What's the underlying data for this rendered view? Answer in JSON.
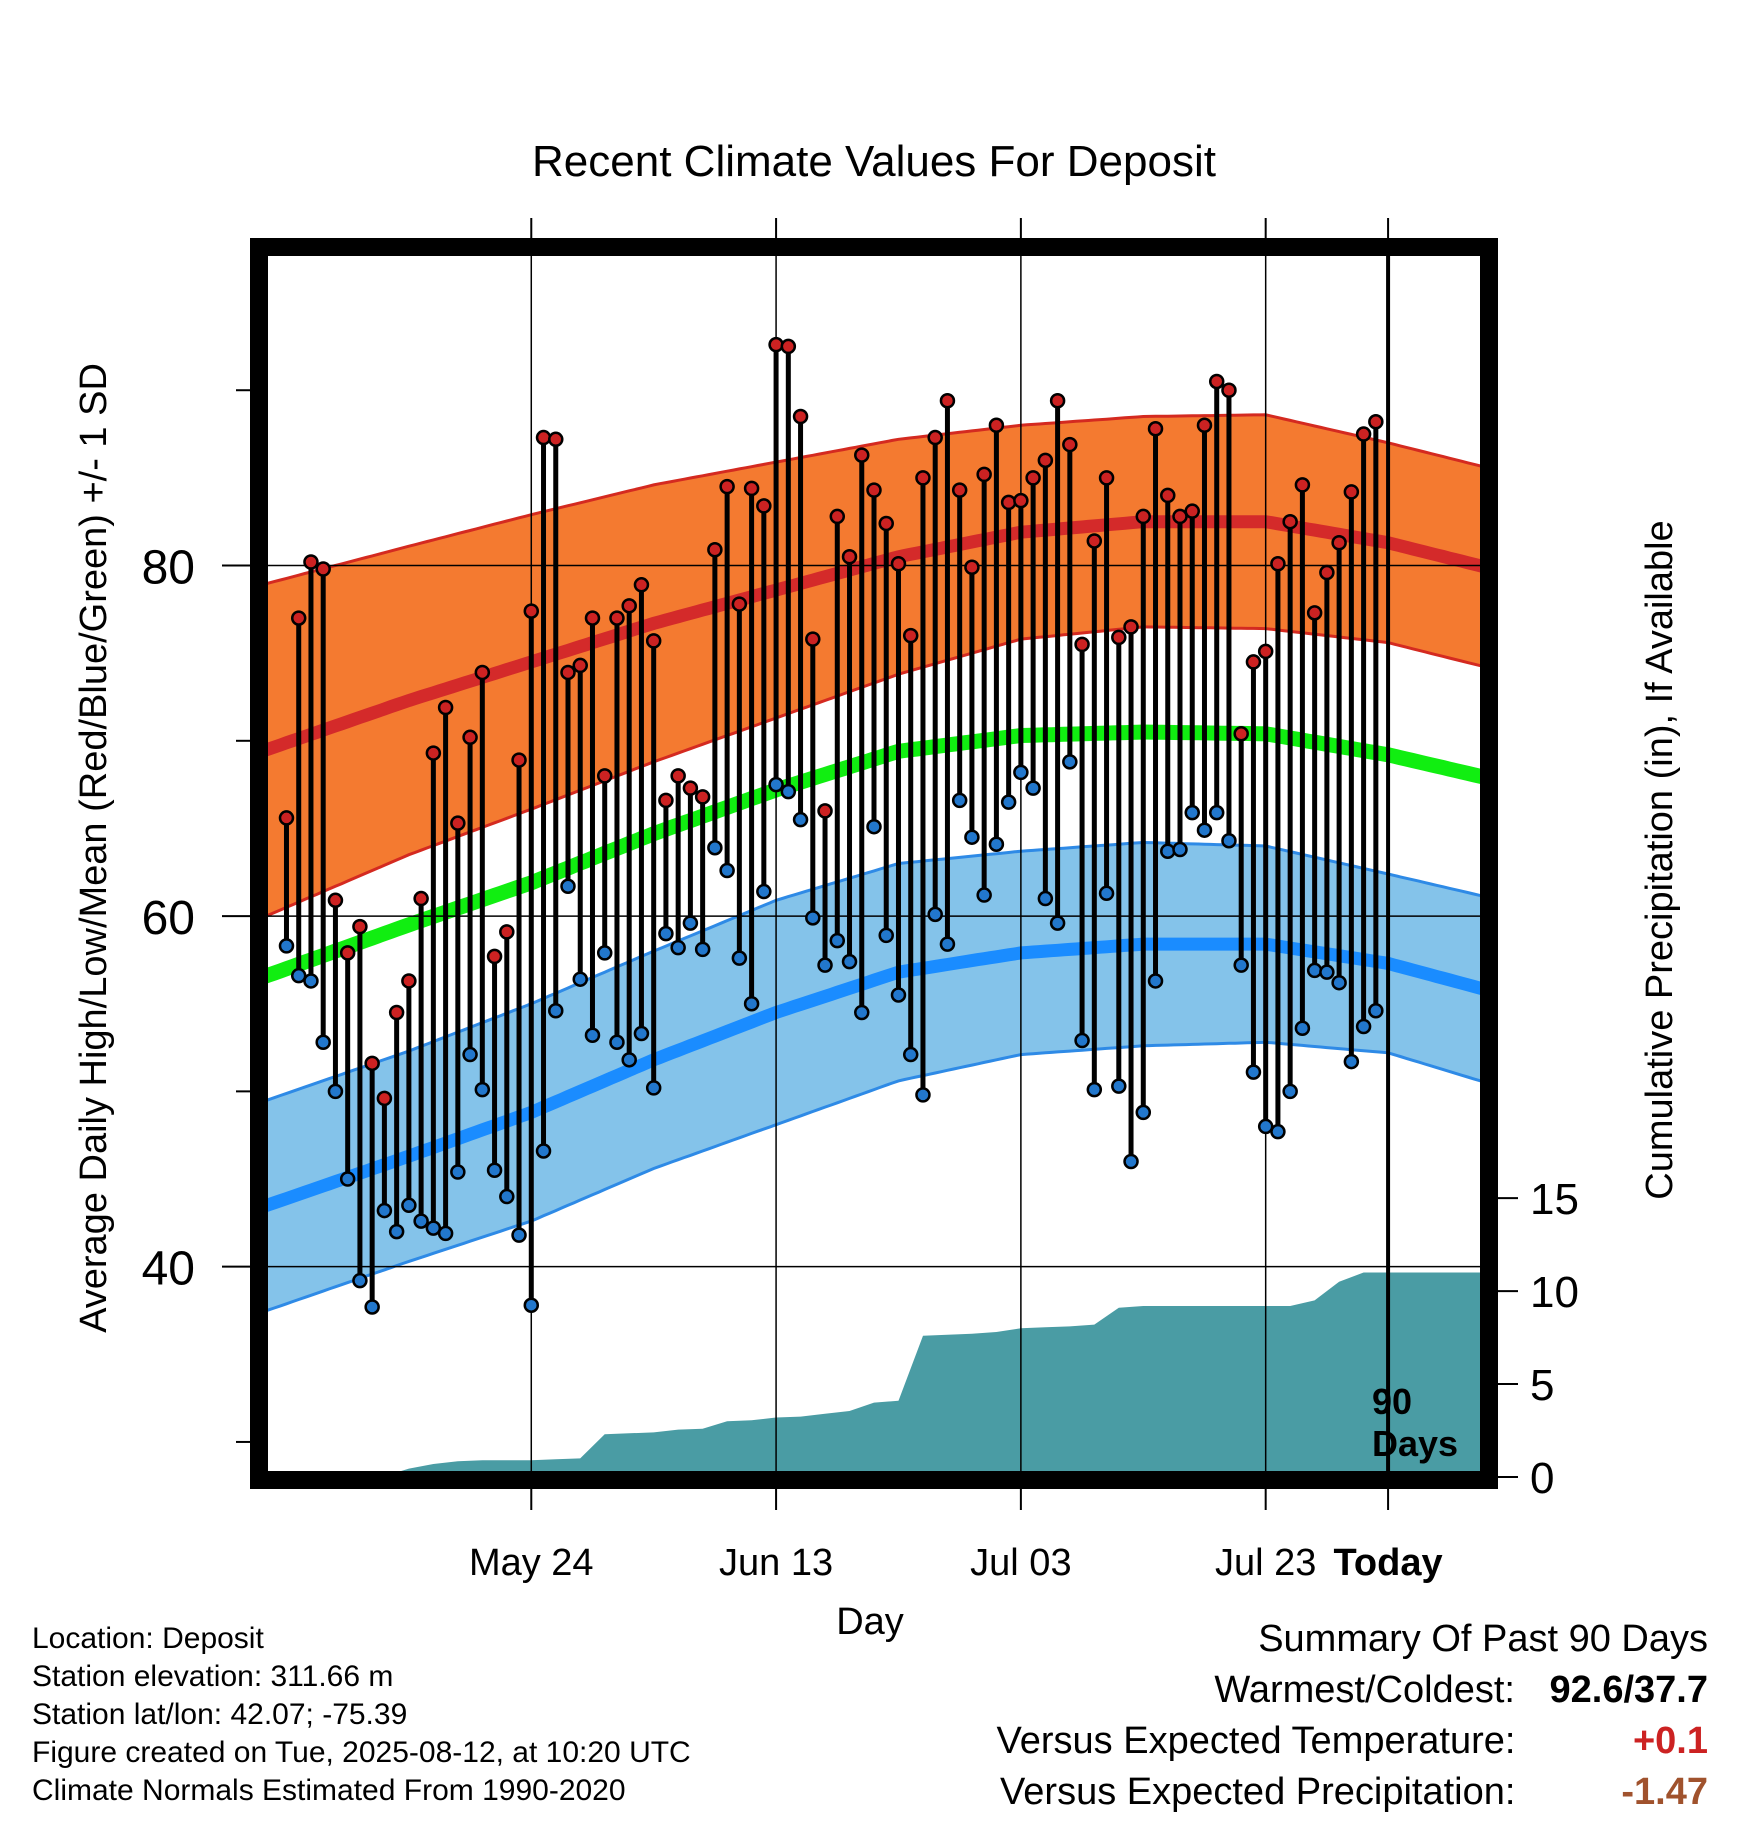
{
  "chart_data": {
    "type": "line",
    "title": "Recent Climate Values For Deposit",
    "xlabel": "Day",
    "ylabel": "Average Daily High/Low/Mean (Red/Blue/Green) +/- 1 SD",
    "y2label": "Cumulative Precipitation (in), If Available",
    "x_day_range": [
      -92,
      8
    ],
    "ylim": [
      28,
      98
    ],
    "y2lim": [
      0,
      66
    ],
    "y_ticks": [
      40,
      60,
      80
    ],
    "y2_ticks": [
      0,
      5,
      10,
      15
    ],
    "x_ticks": [
      {
        "day": -70,
        "label": "May 24"
      },
      {
        "day": -50,
        "label": "Jun 13"
      },
      {
        "day": -30,
        "label": "Jul 03"
      },
      {
        "day": -10,
        "label": "Jul 23"
      },
      {
        "day": 0,
        "label": "Today"
      }
    ],
    "annotation": "90 Days",
    "grid": true,
    "colors": {
      "high_band": "#f47a30",
      "high_edge": "#d42a20",
      "high_mean": "#d42a2a",
      "low_band": "#84c3ea",
      "low_edge": "#2e8ae6",
      "low_mean": "#1a8cff",
      "mean": "#11ee11",
      "precip": "#4a9ca4",
      "high_dot": "#cc2222",
      "low_dot": "#2277cc"
    },
    "normals": {
      "days": [
        -92,
        -80,
        -70,
        -60,
        -50,
        -40,
        -30,
        -20,
        -10,
        0,
        8
      ],
      "high_mean": [
        69.4,
        72.3,
        74.5,
        76.7,
        78.6,
        80.5,
        81.9,
        82.5,
        82.5,
        81.3,
        79.9
      ],
      "high_sd": [
        9.5,
        8.8,
        8.4,
        7.9,
        7.3,
        6.7,
        6.1,
        6.0,
        6.1,
        5.7,
        5.7
      ],
      "low_mean": [
        43.4,
        46.3,
        48.8,
        51.8,
        54.5,
        56.8,
        57.9,
        58.4,
        58.4,
        57.3,
        55.8
      ],
      "low_sd": [
        6.0,
        6.0,
        6.2,
        6.2,
        6.4,
        6.2,
        5.8,
        5.8,
        5.6,
        5.1,
        5.3
      ],
      "mean": [
        56.5,
        59.5,
        61.9,
        64.7,
        67.2,
        69.4,
        70.3,
        70.5,
        70.4,
        69.2,
        67.9
      ]
    },
    "series": [
      {
        "name": "High",
        "values": [
          65.6,
          77.0,
          80.2,
          79.8,
          60.9,
          57.9,
          59.4,
          51.6,
          49.6,
          54.5,
          56.3,
          61.0,
          69.3,
          71.9,
          65.3,
          70.2,
          73.9,
          57.7,
          59.1,
          68.9,
          77.4,
          87.3,
          87.2,
          73.9,
          74.3,
          77.0,
          68.0,
          77.0,
          77.7,
          78.9,
          75.7,
          66.6,
          68.0,
          67.3,
          66.8,
          80.9,
          84.5,
          77.8,
          84.4,
          83.4,
          92.6,
          92.5,
          88.5,
          75.8,
          66.0,
          82.8,
          80.5,
          86.3,
          84.3,
          82.4,
          80.1,
          76.0,
          85.0,
          87.3,
          89.4,
          84.3,
          79.9,
          85.2,
          88.0,
          83.6,
          83.7,
          85.0,
          86.0,
          89.4,
          86.9,
          75.5,
          81.4,
          85.0,
          75.9,
          76.5,
          82.8,
          87.8,
          84.0,
          82.8,
          83.1,
          88.0,
          90.5,
          90.0,
          70.4,
          74.5,
          75.1,
          80.1,
          82.5,
          84.6,
          77.3,
          79.6,
          81.3,
          84.2,
          87.5,
          88.2
        ]
      },
      {
        "name": "Low",
        "values": [
          58.3,
          56.6,
          56.3,
          52.8,
          50.0,
          45.0,
          39.2,
          37.7,
          43.2,
          42.0,
          43.5,
          42.6,
          42.2,
          41.9,
          45.4,
          52.1,
          50.1,
          45.5,
          44.0,
          41.8,
          37.8,
          46.6,
          54.6,
          61.7,
          56.4,
          53.2,
          57.9,
          52.8,
          51.8,
          53.3,
          50.2,
          59.0,
          58.2,
          59.6,
          58.1,
          63.9,
          62.6,
          57.6,
          55.0,
          61.4,
          67.5,
          67.1,
          65.5,
          59.9,
          57.2,
          58.6,
          57.4,
          54.5,
          65.1,
          58.9,
          55.5,
          52.1,
          49.8,
          60.1,
          58.4,
          66.6,
          64.5,
          61.2,
          64.1,
          66.5,
          68.2,
          67.3,
          61.0,
          59.6,
          68.8,
          52.9,
          50.1,
          61.3,
          50.3,
          46.0,
          48.8,
          56.3,
          63.7,
          63.8,
          65.9,
          64.9,
          65.9,
          64.3,
          57.2,
          51.1,
          48.0,
          47.7,
          50.0,
          53.6,
          56.9,
          56.8,
          56.2,
          51.7,
          53.7,
          54.6
        ]
      },
      {
        "name": "Cumulative Precipitation",
        "days": [
          -92,
          -84,
          -82,
          -80,
          -78,
          -76,
          -74,
          -72,
          -70,
          -68,
          -66,
          -64,
          -62,
          -60,
          -58,
          -56,
          -54,
          -52,
          -50,
          -48,
          -46,
          -44,
          -42,
          -40,
          -38,
          -36,
          -34,
          -32,
          -30,
          -28,
          -26,
          -24,
          -22,
          -20,
          -18,
          -16,
          -14,
          -12,
          -10,
          -8,
          -6,
          -4,
          -2,
          0,
          8
        ],
        "values": [
          0.0,
          0.0,
          0.05,
          0.45,
          0.7,
          0.85,
          0.9,
          0.9,
          0.9,
          0.95,
          1.0,
          2.3,
          2.35,
          2.4,
          2.55,
          2.6,
          3.0,
          3.05,
          3.2,
          3.25,
          3.4,
          3.55,
          4.0,
          4.1,
          7.6,
          7.65,
          7.7,
          7.8,
          8.0,
          8.05,
          8.1,
          8.2,
          9.1,
          9.2,
          9.2,
          9.2,
          9.2,
          9.2,
          9.2,
          9.2,
          9.5,
          10.5,
          11.0,
          11.0,
          11.0
        ]
      }
    ]
  },
  "info": {
    "location": "Location: Deposit",
    "elevation": "Station elevation: 311.66 m",
    "latlon": "Station lat/lon: 42.07; -75.39",
    "created": "Figure created on Tue, 2025-08-12, at 10:20 UTC",
    "normals": "Climate Normals Estimated From 1990-2020"
  },
  "summary": {
    "title": "Summary Of Past 90 Days",
    "warm_cold_label": "Warmest/Coldest:",
    "warm_cold_value": "92.6/37.7",
    "temp_label": "Versus Expected Temperature:",
    "temp_value": "+0.1",
    "temp_color": "#cc2222",
    "precip_label": "Versus Expected Precipitation:",
    "precip_value": "-1.47",
    "precip_color": "#a0522d"
  }
}
